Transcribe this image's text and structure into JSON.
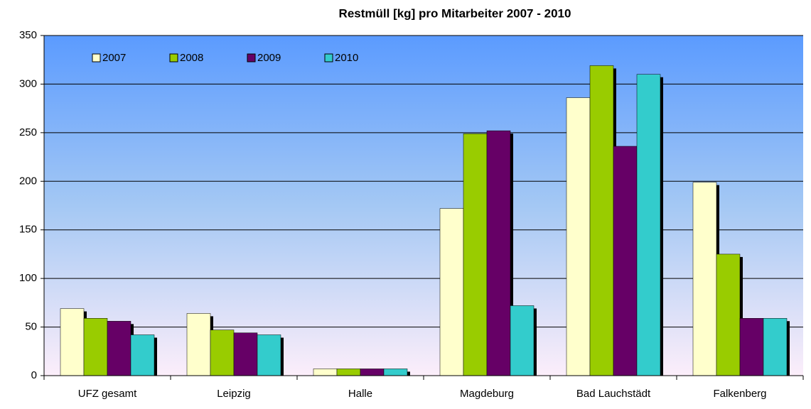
{
  "chart_data": {
    "type": "bar",
    "title": "Restmüll [kg] pro Mitarbeiter 2007 - 2010",
    "categories": [
      "UFZ gesamt",
      "Leipzig",
      "Halle",
      "Magdeburg",
      "Bad Lauchstädt",
      "Falkenberg"
    ],
    "series": [
      {
        "name": "2007",
        "color": "#ffffcc",
        "values": [
          69,
          64,
          7,
          172,
          286,
          199
        ]
      },
      {
        "name": "2008",
        "color": "#99cc00",
        "values": [
          59,
          47,
          7,
          249,
          319,
          125
        ]
      },
      {
        "name": "2009",
        "color": "#660066",
        "values": [
          56,
          44,
          7,
          252,
          236,
          59
        ]
      },
      {
        "name": "2010",
        "color": "#33cccc",
        "values": [
          42,
          42,
          7,
          72,
          310,
          59
        ]
      }
    ],
    "ylim": [
      0,
      350
    ],
    "yticks": [
      0,
      50,
      100,
      150,
      200,
      250,
      300,
      350
    ],
    "grid": true,
    "legend": "top-left"
  }
}
